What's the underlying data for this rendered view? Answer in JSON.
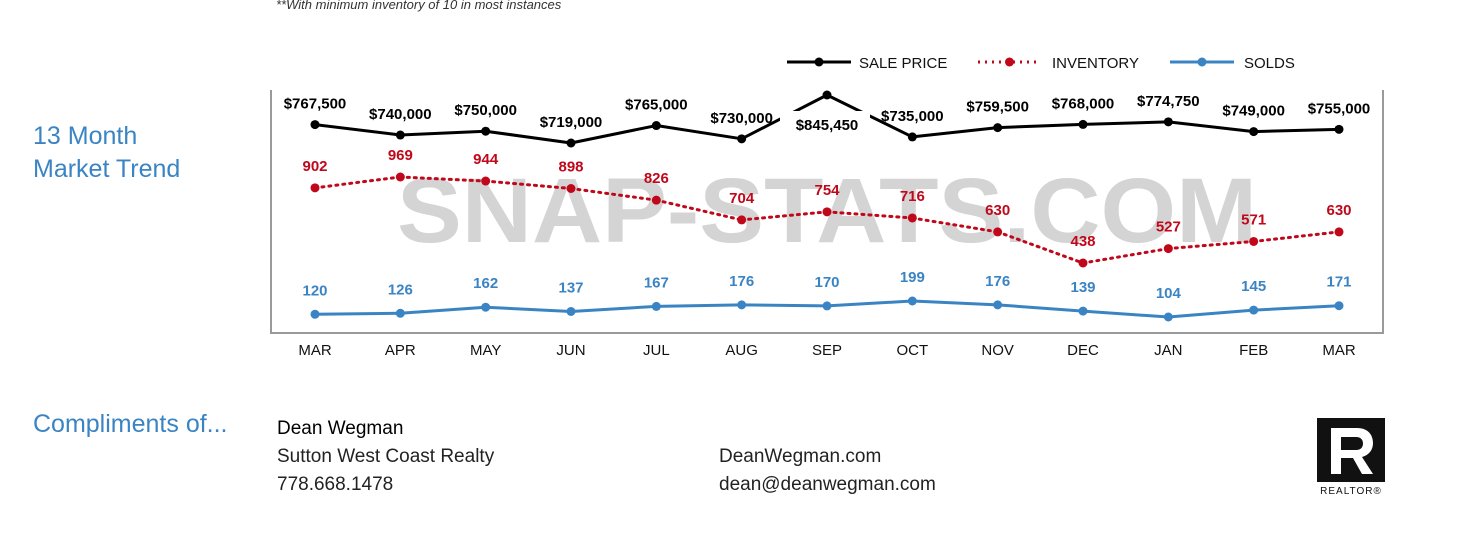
{
  "note": "**With minimum inventory of 10 in most instances",
  "title_lines": [
    "13 Month",
    "Market Trend"
  ],
  "watermark": "SNAP-STATS.COM",
  "chart_data": {
    "type": "line",
    "categories": [
      "MAR",
      "APR",
      "MAY",
      "JUN",
      "JUL",
      "AUG",
      "SEP",
      "OCT",
      "NOV",
      "DEC",
      "JAN",
      "FEB",
      "MAR"
    ],
    "legend_position": "top-right",
    "grid": false,
    "series": [
      {
        "name": "SALE PRICE",
        "color": "#000000",
        "style": "solid",
        "values": [
          767500,
          740000,
          750000,
          719000,
          765000,
          730000,
          845450,
          735000,
          759500,
          768000,
          774750,
          749000,
          755000
        ],
        "labels": [
          "$767,500",
          "$740,000",
          "$750,000",
          "$719,000",
          "$765,000",
          "$730,000",
          "$845,450",
          "$735,000",
          "$759,500",
          "$768,000",
          "$774,750",
          "$749,000",
          "$755,000"
        ]
      },
      {
        "name": "INVENTORY",
        "color": "#c0081a",
        "style": "dotted",
        "values": [
          902,
          969,
          944,
          898,
          826,
          704,
          754,
          716,
          630,
          438,
          527,
          571,
          630
        ],
        "labels": [
          "902",
          "969",
          "944",
          "898",
          "826",
          "704",
          "754",
          "716",
          "630",
          "438",
          "527",
          "571",
          "630"
        ]
      },
      {
        "name": "SOLDS",
        "color": "#3b84c4",
        "style": "solid",
        "values": [
          120,
          126,
          162,
          137,
          167,
          176,
          170,
          199,
          176,
          139,
          104,
          145,
          171
        ],
        "labels": [
          "120",
          "126",
          "162",
          "137",
          "167",
          "176",
          "170",
          "199",
          "176",
          "139",
          "104",
          "145",
          "171"
        ]
      }
    ]
  },
  "compliments": "Compliments of...",
  "agent": {
    "name": "Dean Wegman",
    "company": "Sutton West Coast Realty",
    "phone": "778.668.1478",
    "website": "DeanWegman.com",
    "email": "dean@deanwegman.com"
  },
  "logo": {
    "text": "REALTOR®",
    "icon": "realtor-r-logo"
  }
}
